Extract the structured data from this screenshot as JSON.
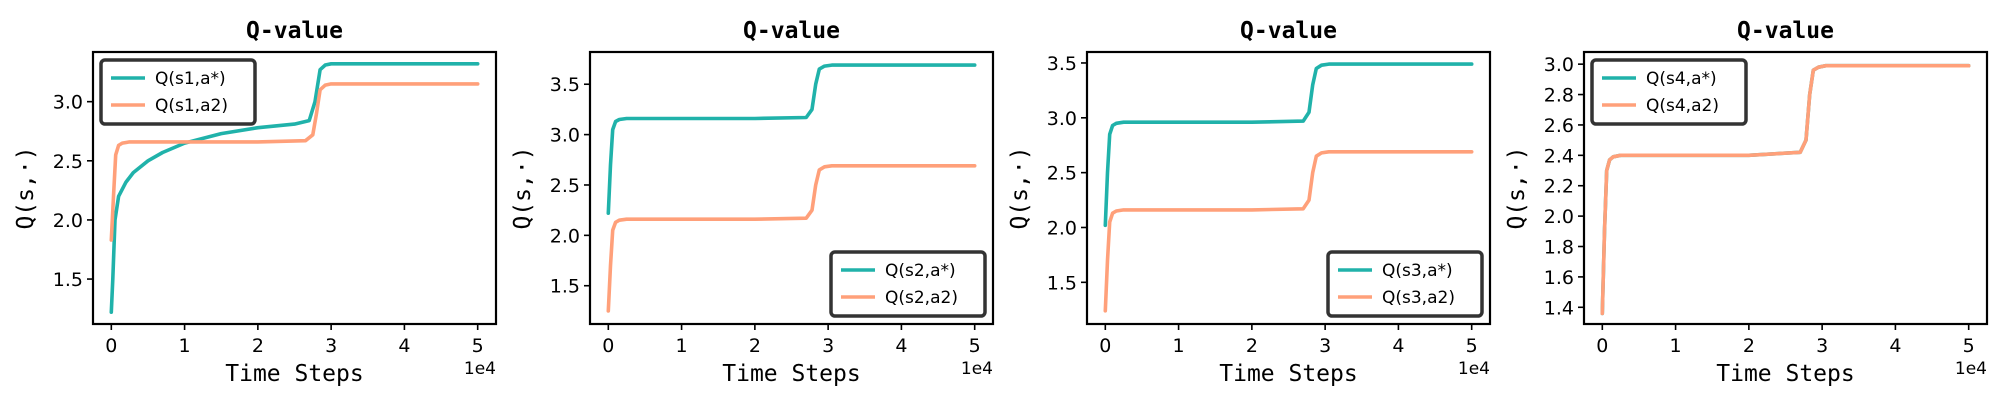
{
  "colors": {
    "primary": "#20b2aa",
    "secondary": "#ffa07a"
  },
  "chart_data": [
    {
      "type": "line",
      "title": "Q-value",
      "xlabel": "Time Steps",
      "ylabel": "Q(s,·)",
      "x_offset_label": "1e4",
      "xlim": [
        -0.25,
        5.25
      ],
      "ylim": [
        1.12,
        3.42
      ],
      "xticks": [
        0,
        1,
        2,
        3,
        4,
        5
      ],
      "yticks": [
        1.5,
        2.0,
        2.5,
        3.0
      ],
      "yticklabels": [
        "1.5",
        "2.0",
        "2.5",
        "3.0"
      ],
      "legend_position": "top-left",
      "series": [
        {
          "name": "Q(s1,a*)",
          "color": "#20b2aa",
          "x": [
            0,
            0.02,
            0.05,
            0.1,
            0.2,
            0.3,
            0.5,
            0.7,
            1.0,
            1.5,
            2.0,
            2.5,
            2.7,
            2.78,
            2.85,
            2.92,
            3.0,
            4.0,
            5.0
          ],
          "y": [
            1.22,
            1.5,
            2.0,
            2.2,
            2.32,
            2.4,
            2.5,
            2.57,
            2.65,
            2.73,
            2.78,
            2.81,
            2.84,
            3.0,
            3.27,
            3.31,
            3.32,
            3.32,
            3.32
          ]
        },
        {
          "name": "Q(s1,a2)",
          "color": "#ffa07a",
          "x": [
            0,
            0.03,
            0.06,
            0.1,
            0.15,
            0.25,
            1.0,
            2.0,
            2.65,
            2.75,
            2.8,
            2.85,
            2.92,
            3.0,
            4.0,
            5.0
          ],
          "y": [
            1.83,
            2.2,
            2.55,
            2.63,
            2.65,
            2.66,
            2.66,
            2.66,
            2.67,
            2.72,
            2.9,
            3.1,
            3.14,
            3.15,
            3.15,
            3.15
          ]
        }
      ]
    },
    {
      "type": "line",
      "title": "Q-value",
      "xlabel": "Time Steps",
      "ylabel": "Q(s,·)",
      "x_offset_label": "1e4",
      "xlim": [
        -0.25,
        5.25
      ],
      "ylim": [
        1.12,
        3.82
      ],
      "xticks": [
        0,
        1,
        2,
        3,
        4,
        5
      ],
      "yticks": [
        1.5,
        2.0,
        2.5,
        3.0,
        3.5
      ],
      "yticklabels": [
        "1.5",
        "2.0",
        "2.5",
        "3.0",
        "3.5"
      ],
      "legend_position": "bottom-right",
      "series": [
        {
          "name": "Q(s2,a*)",
          "color": "#20b2aa",
          "x": [
            0,
            0.03,
            0.06,
            0.1,
            0.15,
            0.25,
            1.0,
            2.0,
            2.7,
            2.78,
            2.83,
            2.88,
            2.95,
            3.05,
            4.0,
            5.0
          ],
          "y": [
            2.22,
            2.7,
            3.05,
            3.13,
            3.15,
            3.16,
            3.16,
            3.16,
            3.17,
            3.25,
            3.5,
            3.65,
            3.68,
            3.69,
            3.69,
            3.69
          ]
        },
        {
          "name": "Q(s2,a2)",
          "color": "#ffa07a",
          "x": [
            0,
            0.03,
            0.06,
            0.1,
            0.15,
            0.25,
            1.0,
            2.0,
            2.7,
            2.78,
            2.83,
            2.88,
            2.95,
            3.05,
            4.0,
            5.0
          ],
          "y": [
            1.25,
            1.7,
            2.05,
            2.13,
            2.15,
            2.16,
            2.16,
            2.16,
            2.17,
            2.25,
            2.5,
            2.65,
            2.68,
            2.69,
            2.69,
            2.69
          ]
        }
      ]
    },
    {
      "type": "line",
      "title": "Q-value",
      "xlabel": "Time Steps",
      "ylabel": "Q(s,·)",
      "x_offset_label": "1e4",
      "xlim": [
        -0.25,
        5.25
      ],
      "ylim": [
        1.12,
        3.6
      ],
      "xticks": [
        0,
        1,
        2,
        3,
        4,
        5
      ],
      "yticks": [
        1.5,
        2.0,
        2.5,
        3.0,
        3.5
      ],
      "yticklabels": [
        "1.5",
        "2.0",
        "2.5",
        "3.0",
        "3.5"
      ],
      "legend_position": "bottom-right",
      "series": [
        {
          "name": "Q(s3,a*)",
          "color": "#20b2aa",
          "x": [
            0,
            0.03,
            0.06,
            0.1,
            0.15,
            0.25,
            1.0,
            2.0,
            2.7,
            2.78,
            2.83,
            2.88,
            2.95,
            3.05,
            4.0,
            5.0
          ],
          "y": [
            2.02,
            2.5,
            2.85,
            2.93,
            2.95,
            2.96,
            2.96,
            2.96,
            2.97,
            3.05,
            3.3,
            3.45,
            3.48,
            3.49,
            3.49,
            3.49
          ]
        },
        {
          "name": "Q(s3,a2)",
          "color": "#ffa07a",
          "x": [
            0,
            0.03,
            0.06,
            0.1,
            0.15,
            0.25,
            1.0,
            2.0,
            2.7,
            2.78,
            2.83,
            2.88,
            2.95,
            3.05,
            4.0,
            5.0
          ],
          "y": [
            1.24,
            1.7,
            2.05,
            2.13,
            2.15,
            2.16,
            2.16,
            2.16,
            2.17,
            2.25,
            2.5,
            2.65,
            2.68,
            2.69,
            2.69,
            2.69
          ]
        }
      ]
    },
    {
      "type": "line",
      "title": "Q-value",
      "xlabel": "Time Steps",
      "ylabel": "Q(s,·)",
      "x_offset_label": "1e4",
      "xlim": [
        -0.25,
        5.25
      ],
      "ylim": [
        1.29,
        3.08
      ],
      "xticks": [
        0,
        1,
        2,
        3,
        4,
        5
      ],
      "yticks": [
        1.4,
        1.6,
        1.8,
        2.0,
        2.2,
        2.4,
        2.6,
        2.8,
        3.0
      ],
      "yticklabels": [
        "1.4",
        "1.6",
        "1.8",
        "2.0",
        "2.2",
        "2.4",
        "2.6",
        "2.8",
        "3.0"
      ],
      "legend_position": "top-left",
      "series": [
        {
          "name": "Q(s4,a*)",
          "color": "#20b2aa",
          "x": [
            0,
            0.03,
            0.06,
            0.1,
            0.15,
            0.25,
            1.0,
            2.0,
            2.7,
            2.78,
            2.83,
            2.88,
            2.95,
            3.05,
            4.0,
            5.0
          ],
          "y": [
            1.36,
            1.9,
            2.3,
            2.37,
            2.39,
            2.4,
            2.4,
            2.4,
            2.42,
            2.5,
            2.8,
            2.96,
            2.98,
            2.99,
            2.99,
            2.99
          ]
        },
        {
          "name": "Q(s4,a2)",
          "color": "#ffa07a",
          "x": [
            0,
            0.03,
            0.06,
            0.1,
            0.15,
            0.25,
            1.0,
            2.0,
            2.7,
            2.78,
            2.83,
            2.88,
            2.95,
            3.05,
            4.0,
            5.0
          ],
          "y": [
            1.36,
            1.9,
            2.3,
            2.37,
            2.39,
            2.4,
            2.4,
            2.4,
            2.42,
            2.5,
            2.8,
            2.96,
            2.98,
            2.99,
            2.99,
            2.99
          ]
        }
      ]
    }
  ]
}
